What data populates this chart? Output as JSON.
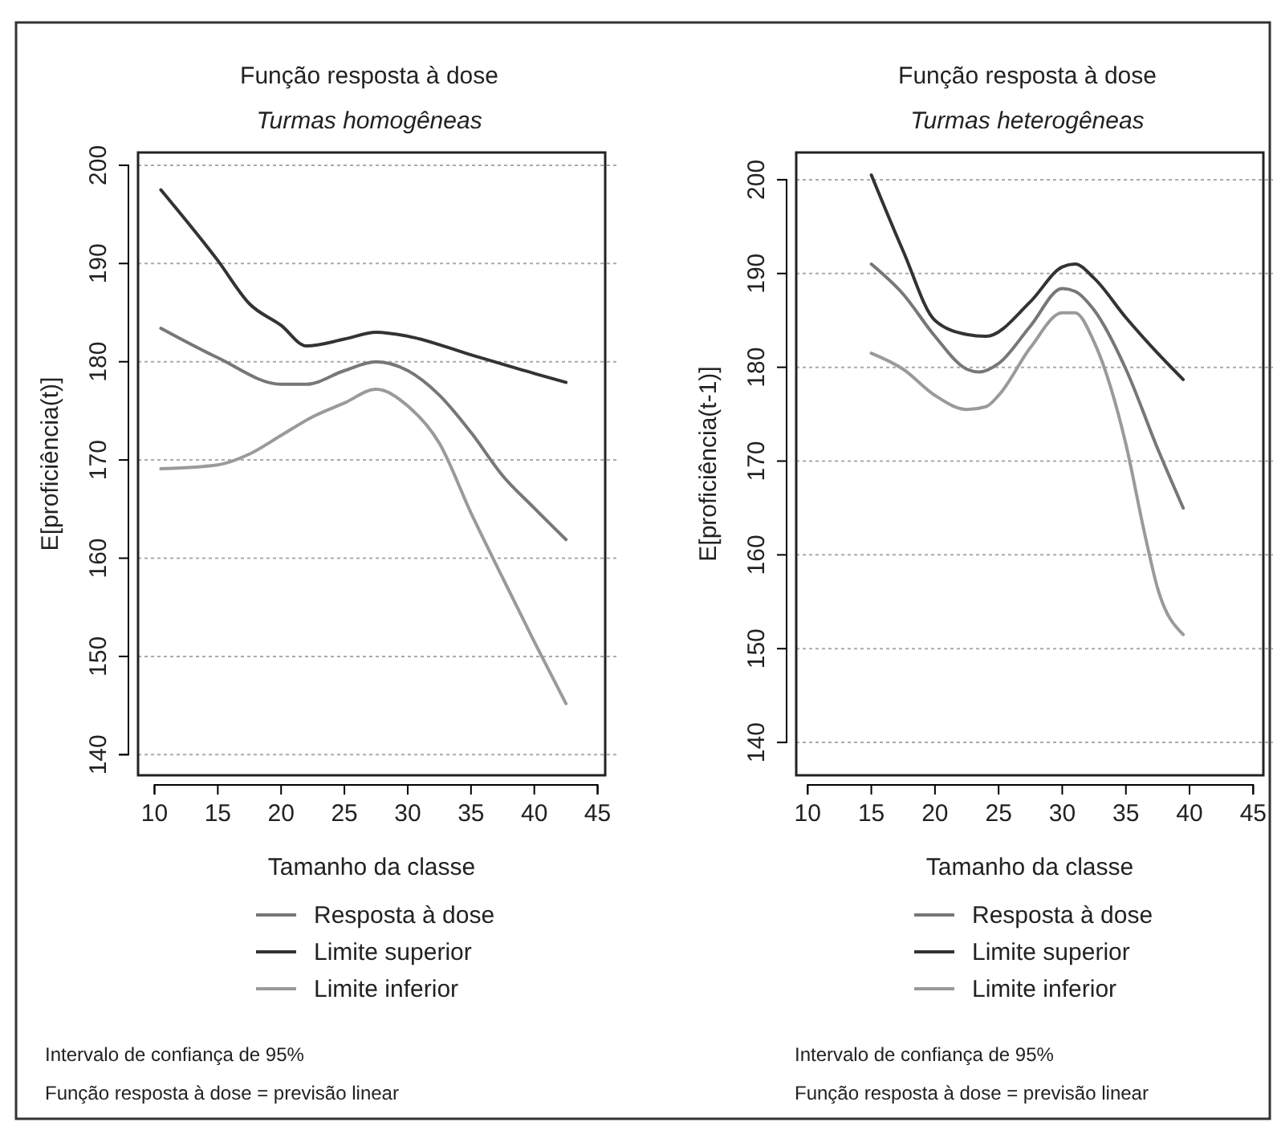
{
  "chart_data": [
    {
      "type": "line",
      "title": "Função resposta à dose",
      "subtitle": "Turmas homogêneas",
      "xlabel": "Tamanho da classe",
      "ylabel": "E[proficiência(t)]",
      "xlim": [
        8.7,
        45.6
      ],
      "xticks": [
        10,
        15,
        20,
        25,
        30,
        35,
        40,
        45
      ],
      "ylim": [
        137.9,
        201.3
      ],
      "yticks": [
        140,
        150,
        160,
        170,
        180,
        190,
        200
      ],
      "grid": "y",
      "legend": "bottom",
      "line_style": "solid",
      "annotations": [
        "Intervalo de confiança de 95%",
        "Função resposta à dose = previsão linear"
      ],
      "series": [
        {
          "name": "Resposta à dose",
          "color": "#777777",
          "x": [
            10.5,
            15,
            20,
            22,
            25,
            27.5,
            30,
            32.5,
            35,
            37.5,
            40,
            42.5
          ],
          "values": [
            183.4,
            180.4,
            177.7,
            177.7,
            179.1,
            180,
            179.1,
            176.6,
            172.8,
            168.4,
            165.1,
            161.9
          ]
        },
        {
          "name": "Limite superior",
          "color": "#333333",
          "x": [
            10.5,
            15,
            17.5,
            20,
            22,
            25,
            27.5,
            30,
            35,
            40,
            42.5
          ],
          "values": [
            197.5,
            190.3,
            185.9,
            183.7,
            181.6,
            182.3,
            183,
            182.6,
            180.7,
            178.8,
            177.9
          ]
        },
        {
          "name": "Limite inferior",
          "color": "#9a9a9a",
          "x": [
            10.5,
            15,
            17.5,
            20,
            22.5,
            25,
            27.5,
            30,
            32.5,
            35,
            37.5,
            40,
            42.5
          ],
          "values": [
            169.1,
            169.5,
            170.6,
            172.5,
            174.4,
            175.8,
            177.2,
            175.5,
            171.7,
            164.6,
            158,
            151.5,
            145.2
          ]
        }
      ]
    },
    {
      "type": "line",
      "title": "Função resposta à dose",
      "subtitle": "Turmas heterogêneas",
      "xlabel": "Tamanho da classe",
      "ylabel": "E[proficiência(t-1)]",
      "xlim": [
        9.1,
        45.8
      ],
      "xticks": [
        10,
        15,
        20,
        25,
        30,
        35,
        40,
        45
      ],
      "ylim": [
        136.5,
        202.9
      ],
      "yticks": [
        140,
        150,
        160,
        170,
        180,
        190,
        200
      ],
      "grid": "y",
      "legend": "bottom",
      "line_style": "solid",
      "annotations": [
        "Intervalo de confiança de 95%",
        "Função resposta à dose = previsão linear"
      ],
      "series": [
        {
          "name": "Resposta à dose",
          "color": "#777777",
          "x": [
            15,
            17.5,
            20,
            22.5,
            23.5,
            25,
            27.5,
            30,
            31,
            32.5,
            35,
            37.5,
            39.5
          ],
          "values": [
            191,
            187.8,
            183.3,
            179.8,
            179.5,
            180.4,
            184.4,
            188.4,
            188.1,
            186.1,
            179.8,
            171.3,
            165
          ]
        },
        {
          "name": "Limite superior",
          "color": "#333333",
          "x": [
            15,
            17.5,
            20,
            22.5,
            24,
            27.5,
            30,
            31,
            32.5,
            35,
            37.5,
            39.5
          ],
          "values": [
            200.5,
            192.4,
            185,
            183.5,
            183.3,
            187,
            190.7,
            191,
            189.5,
            185.3,
            181.5,
            178.7
          ]
        },
        {
          "name": "Limite inferior",
          "color": "#9a9a9a",
          "x": [
            15,
            17.5,
            20,
            22.5,
            24,
            25,
            27.5,
            30,
            31,
            32.5,
            35,
            36.5,
            37.5,
            39.5
          ],
          "values": [
            181.5,
            179.8,
            177,
            175.5,
            175.8,
            177,
            182.1,
            185.8,
            185.8,
            182.7,
            171.8,
            162.1,
            156.4,
            151.5
          ]
        }
      ]
    }
  ]
}
